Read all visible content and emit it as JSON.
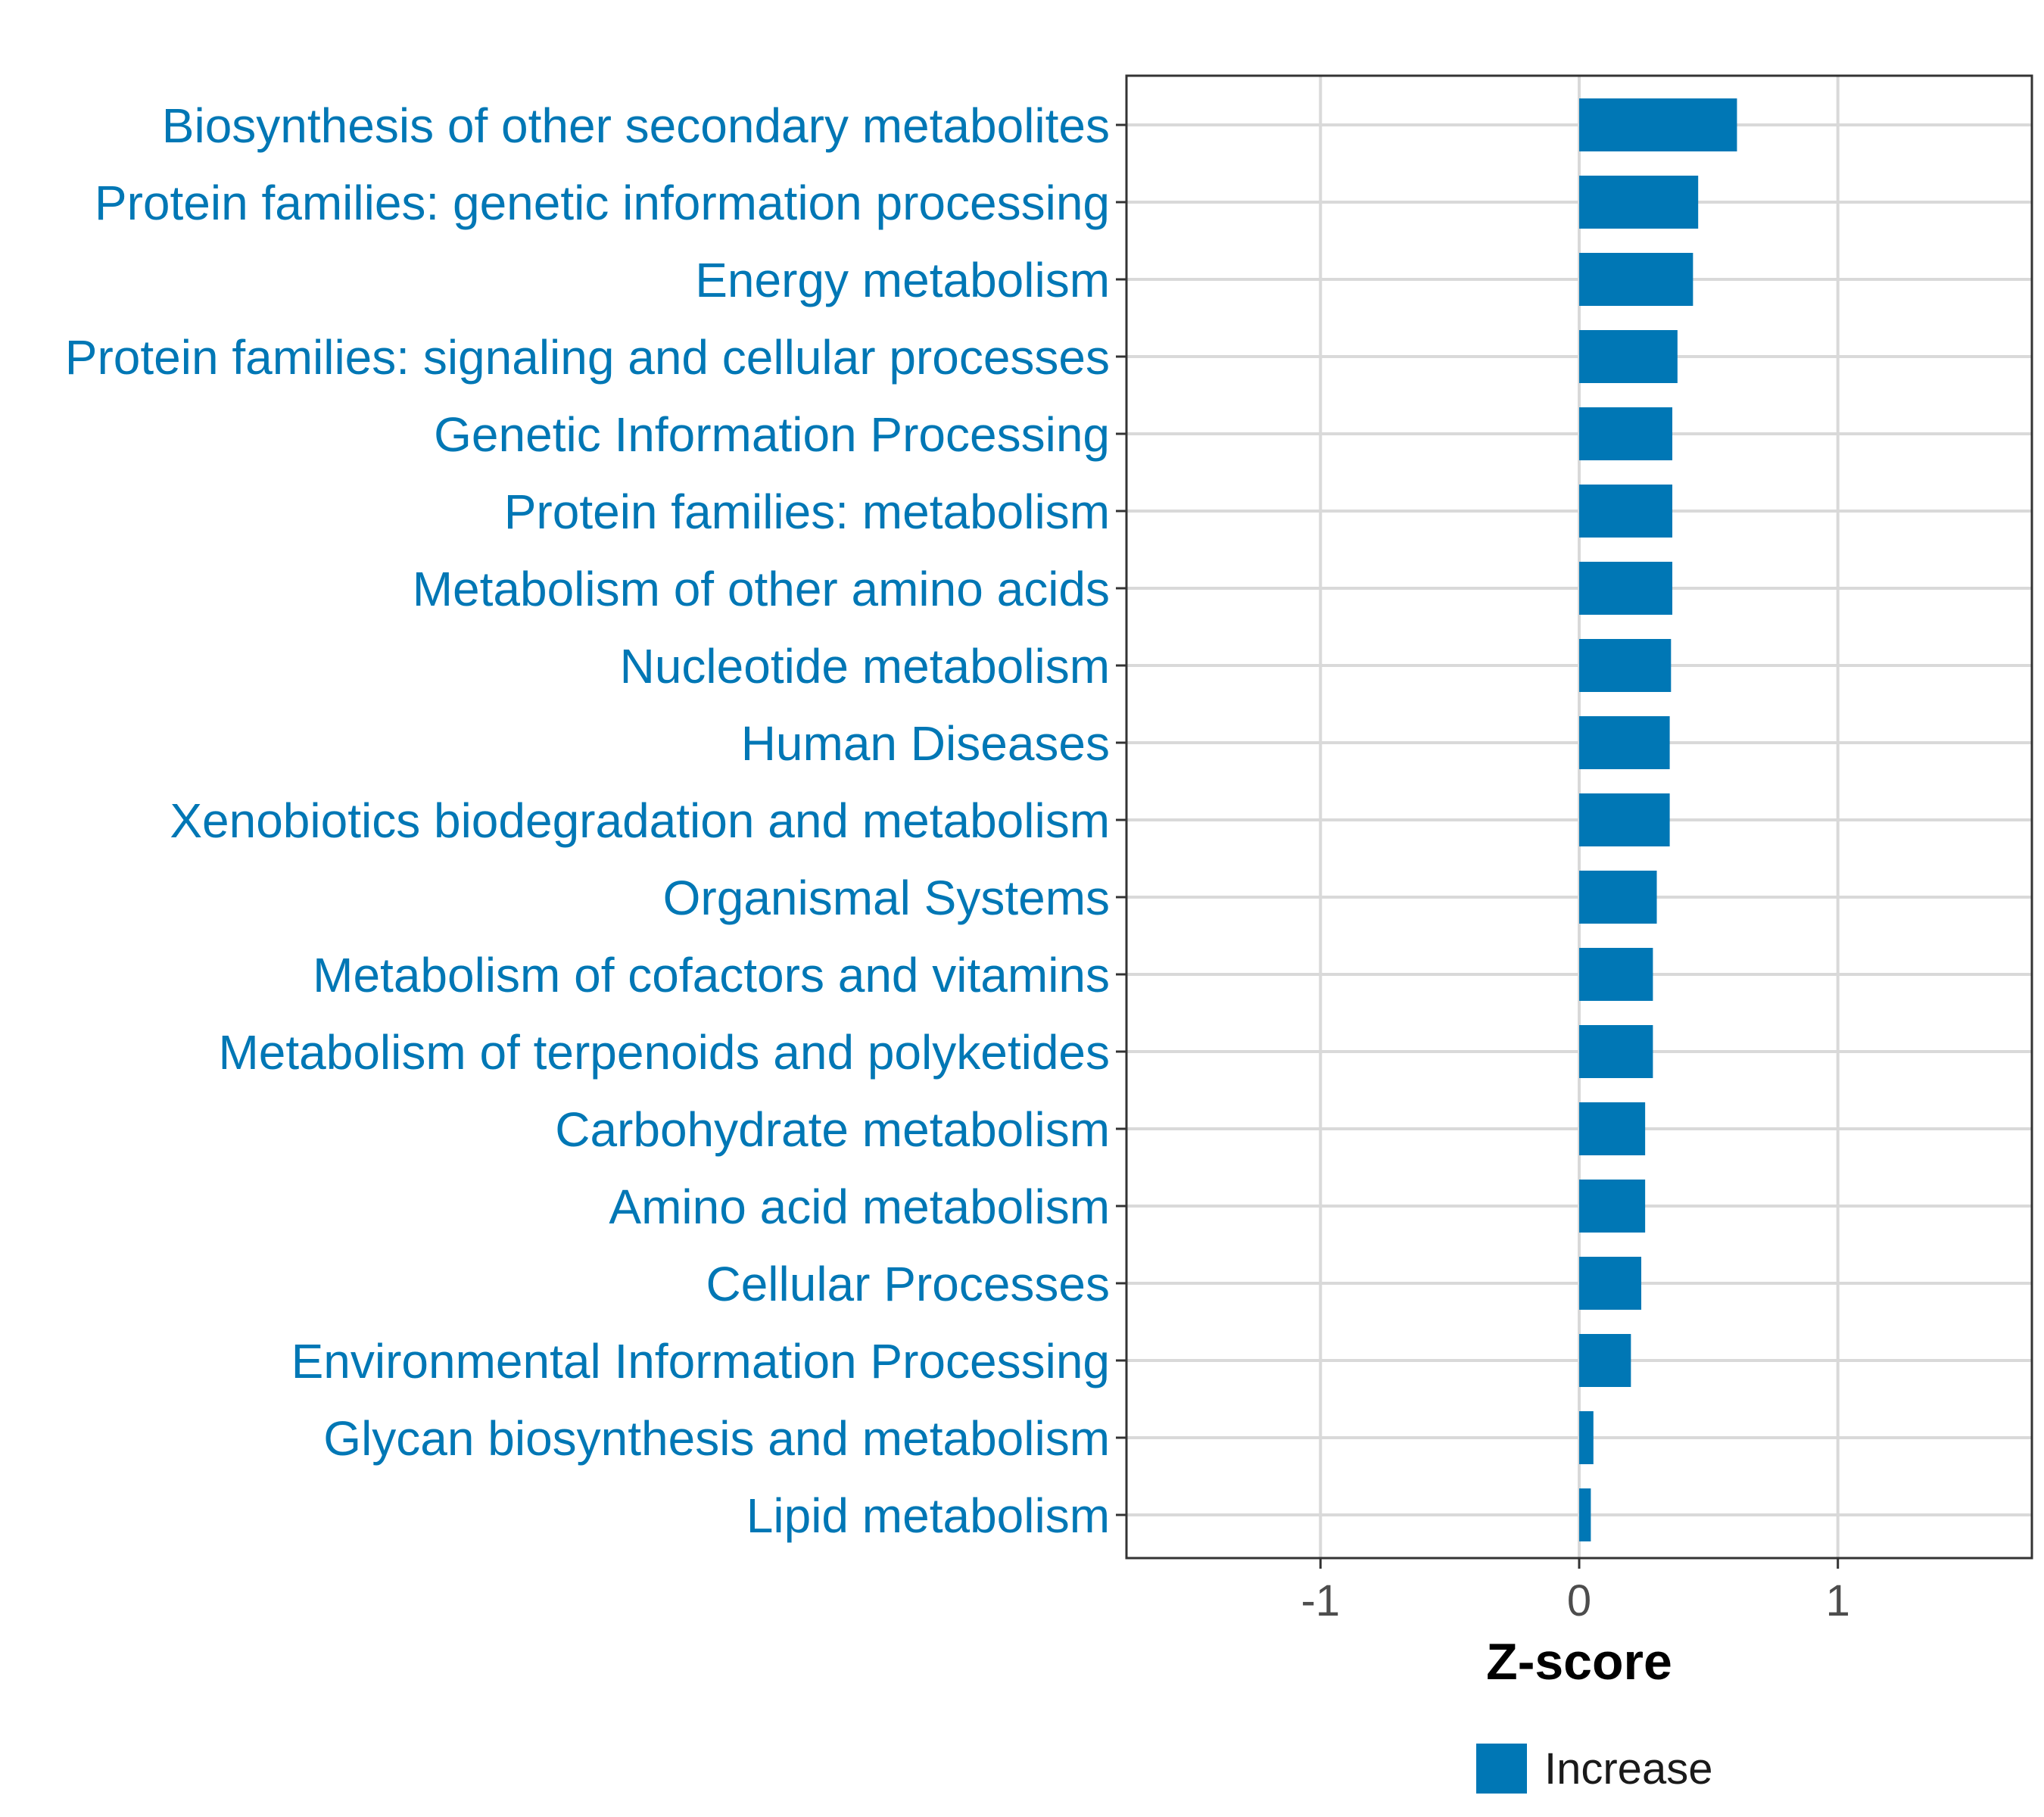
{
  "colors": {
    "bar": "#0077b5",
    "label": "#0077b5"
  },
  "chart_data": {
    "type": "bar",
    "orientation": "horizontal",
    "categories": [
      "Biosynthesis of other secondary metabolites",
      "Protein families: genetic information processing",
      "Energy metabolism",
      "Protein families: signaling and cellular processes",
      "Genetic Information Processing",
      "Protein families: metabolism",
      "Metabolism of other amino acids",
      "Nucleotide metabolism",
      "Human Diseases",
      "Xenobiotics biodegradation and metabolism",
      "Organismal Systems",
      "Metabolism of cofactors and vitamins",
      "Metabolism of terpenoids and polyketides",
      "Carbohydrate metabolism",
      "Amino acid metabolism",
      "Cellular Processes",
      "Environmental Information Processing",
      "Glycan biosynthesis and metabolism",
      "Lipid metabolism"
    ],
    "values": [
      0.61,
      0.46,
      0.44,
      0.38,
      0.36,
      0.36,
      0.36,
      0.355,
      0.35,
      0.35,
      0.3,
      0.285,
      0.285,
      0.255,
      0.255,
      0.24,
      0.2,
      0.055,
      0.045
    ],
    "xlabel": "Z-score",
    "xlim": [
      -1.75,
      1.75
    ],
    "xticks": [
      -1,
      0,
      1
    ],
    "xtick_labels": [
      "-1",
      "0",
      "1"
    ],
    "grid": true,
    "legend": {
      "position": "bottom",
      "entries": [
        {
          "label": "Increase",
          "color": "#0077b5"
        }
      ]
    }
  }
}
